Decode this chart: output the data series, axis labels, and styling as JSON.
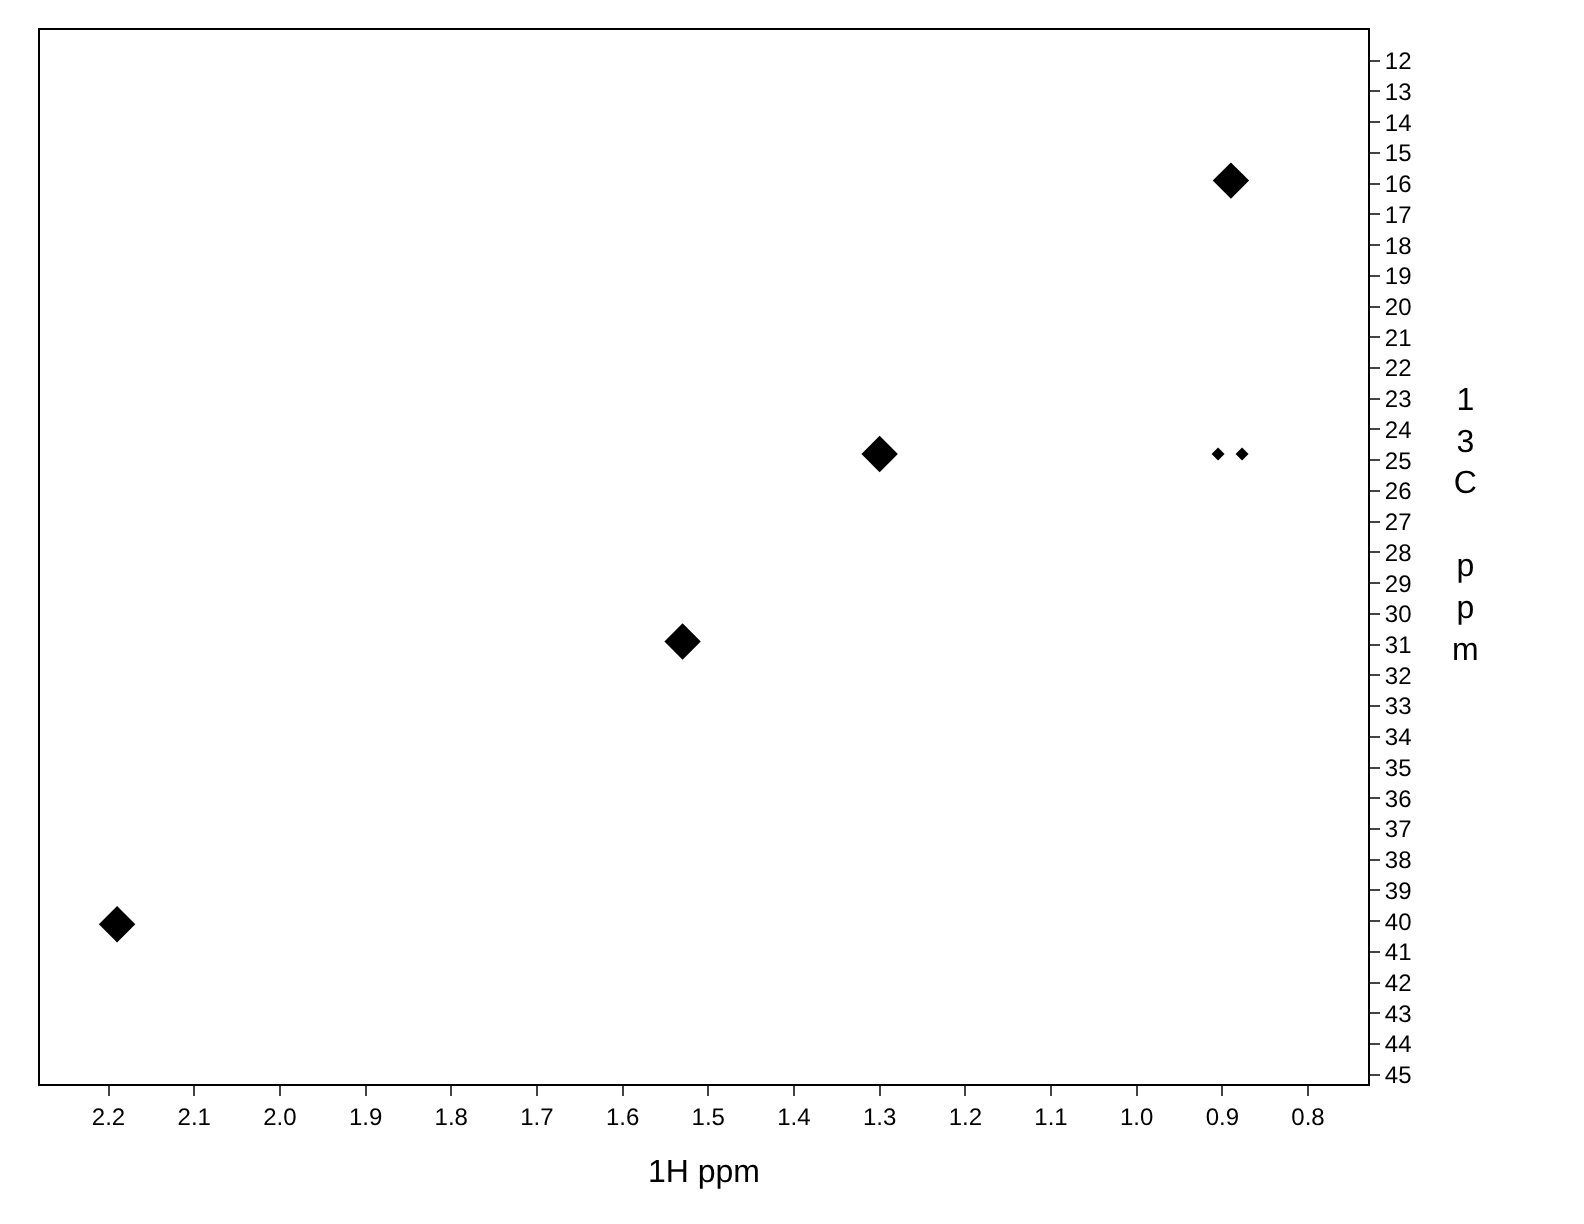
{
  "chart_data": {
    "type": "scatter",
    "xlabel": "1H ppm",
    "ylabel": "13C ppm",
    "xlim": [
      2.28,
      0.73
    ],
    "xticks": [
      2.2,
      2.1,
      {
        "value": 2,
        "label": "2.0"
      },
      1.9,
      1.8,
      1.7,
      1.6,
      1.5,
      1.4,
      1.3,
      1.2,
      1.1,
      {
        "value": 1,
        "label": "1.0"
      },
      0.9,
      0.8
    ],
    "ylim": [
      45.3,
      11.0
    ],
    "yticks": [
      12,
      13,
      14,
      15,
      16,
      17,
      18,
      19,
      20,
      21,
      22,
      23,
      24,
      25,
      26,
      27,
      28,
      29,
      30,
      31,
      32,
      33,
      34,
      35,
      36,
      37,
      38,
      39,
      40,
      41,
      42,
      43,
      44,
      45
    ],
    "marker": "diamond",
    "series": [
      {
        "color": "#000000",
        "x": [
          2.19,
          1.53,
          1.3,
          0.89
        ],
        "values": [
          40.1,
          30.9,
          24.8,
          15.9
        ]
      },
      {
        "color": "#000000",
        "x": [
          0.905,
          0.877
        ],
        "values": [
          24.8,
          24.8
        ]
      }
    ]
  }
}
